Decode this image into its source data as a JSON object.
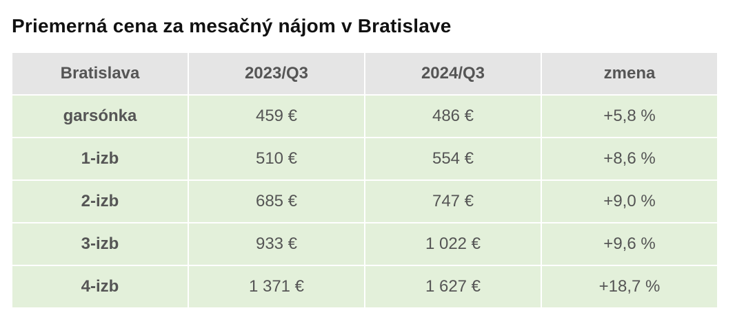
{
  "title": "Priemerná cena za mesačný nájom v Bratislave",
  "table": {
    "headers": [
      "Bratislava",
      "2023/Q3",
      "2024/Q3",
      "zmena"
    ],
    "rows": [
      [
        "garsónka",
        "459 €",
        "486 €",
        "+5,8 %"
      ],
      [
        "1-izb",
        "510 €",
        "554 €",
        "+8,6 %"
      ],
      [
        "2-izb",
        "685 €",
        "747 €",
        "+9,0 %"
      ],
      [
        "3-izb",
        "933 €",
        "1 022 €",
        "+9,6 %"
      ],
      [
        "4-izb",
        "1 371 €",
        "1 627 €",
        "+18,7 %"
      ]
    ]
  },
  "colors": {
    "header_bg": "#e5e5e5",
    "body_bg": "#e3f0da",
    "text": "#555555",
    "title": "#111111"
  }
}
